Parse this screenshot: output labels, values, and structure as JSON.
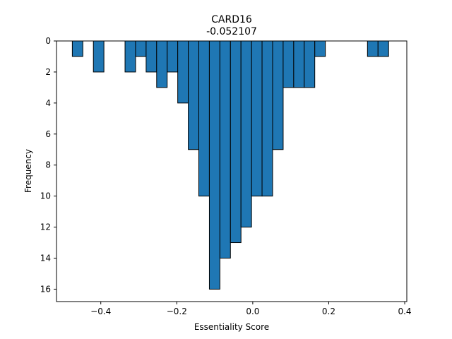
{
  "chart_data": {
    "type": "bar",
    "title": "CARD16",
    "subtitle": "-0.052107",
    "xlabel": "Essentiality Score",
    "ylabel": "Frequency",
    "xlim": [
      -0.5166,
      0.4055
    ],
    "ylim": [
      16.8,
      0
    ],
    "y_inverted": true,
    "bin_width": 0.02775,
    "bar_color": "#1f77b4",
    "edge_color": "#000000",
    "bins": [
      {
        "left": -0.475,
        "count": 1
      },
      {
        "left": -0.4472,
        "count": 0
      },
      {
        "left": -0.4195,
        "count": 2
      },
      {
        "left": -0.3917,
        "count": 0
      },
      {
        "left": -0.364,
        "count": 0
      },
      {
        "left": -0.3362,
        "count": 2
      },
      {
        "left": -0.3085,
        "count": 1
      },
      {
        "left": -0.2807,
        "count": 2
      },
      {
        "left": -0.253,
        "count": 3
      },
      {
        "left": -0.2252,
        "count": 2
      },
      {
        "left": -0.1975,
        "count": 4
      },
      {
        "left": -0.1697,
        "count": 7
      },
      {
        "left": -0.142,
        "count": 10
      },
      {
        "left": -0.1142,
        "count": 16
      },
      {
        "left": -0.0865,
        "count": 14
      },
      {
        "left": -0.0587,
        "count": 13
      },
      {
        "left": -0.031,
        "count": 12
      },
      {
        "left": -0.0032,
        "count": 10
      },
      {
        "left": 0.0245,
        "count": 10
      },
      {
        "left": 0.0523,
        "count": 7
      },
      {
        "left": 0.08,
        "count": 3
      },
      {
        "left": 0.1078,
        "count": 3
      },
      {
        "left": 0.1355,
        "count": 3
      },
      {
        "left": 0.1633,
        "count": 1
      },
      {
        "left": 0.191,
        "count": 0
      },
      {
        "left": 0.2188,
        "count": 0
      },
      {
        "left": 0.2465,
        "count": 0
      },
      {
        "left": 0.2743,
        "count": 0
      },
      {
        "left": 0.302,
        "count": 1
      },
      {
        "left": 0.3298,
        "count": 1
      }
    ],
    "x_ticks": [
      {
        "value": -0.4,
        "label": "−0.4"
      },
      {
        "value": -0.2,
        "label": "−0.2"
      },
      {
        "value": 0.0,
        "label": "0.0"
      },
      {
        "value": 0.2,
        "label": "0.2"
      },
      {
        "value": 0.4,
        "label": "0.4"
      }
    ],
    "y_ticks": [
      {
        "value": 0,
        "label": "0"
      },
      {
        "value": 2,
        "label": "2"
      },
      {
        "value": 4,
        "label": "4"
      },
      {
        "value": 6,
        "label": "6"
      },
      {
        "value": 8,
        "label": "8"
      },
      {
        "value": 10,
        "label": "10"
      },
      {
        "value": 12,
        "label": "12"
      },
      {
        "value": 14,
        "label": "14"
      },
      {
        "value": 16,
        "label": "16"
      }
    ]
  }
}
